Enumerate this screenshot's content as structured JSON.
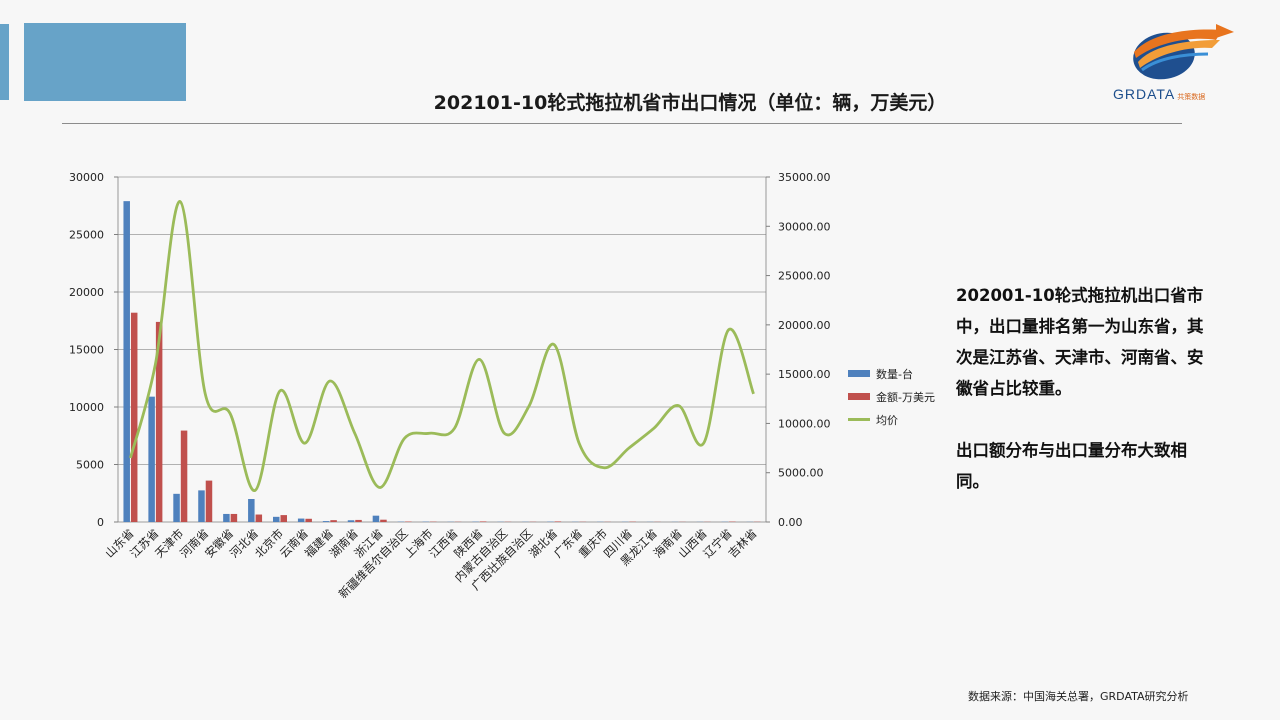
{
  "title": "202101-10轮式拖拉机省市出口情况（单位：辆，万美元）",
  "logo": {
    "name": "GRDATA",
    "tagline": "共策数据"
  },
  "summary": {
    "p1": "202001-10轮式拖拉机出口省市中，出口量排名第一为山东省，其次是江苏省、天津市、河南省、安徽省占比较重。",
    "p2": "出口额分布与出口量分布大致相同。"
  },
  "source": "数据来源：中国海关总署，GRDATA研究分析",
  "colors": {
    "series1": "#4f81bd",
    "series2": "#c0504d",
    "series3": "#9bbb59",
    "accent": "#67a3c8"
  },
  "chart_data": {
    "type": "bar",
    "categories": [
      "山东省",
      "江苏省",
      "天津市",
      "河南省",
      "安徽省",
      "河北省",
      "北京市",
      "云南省",
      "福建省",
      "湖南省",
      "浙江省",
      "新疆维吾尔自治区",
      "上海市",
      "江西省",
      "陕西省",
      "内蒙古自治区",
      "广西壮族自治区",
      "湖北省",
      "广东省",
      "重庆市",
      "四川省",
      "黑龙江省",
      "海南省",
      "山西省",
      "辽宁省",
      "吉林省"
    ],
    "series": [
      {
        "name": "数量-台",
        "type": "bar",
        "axis": "left",
        "values": [
          27900,
          10900,
          2450,
          2750,
          700,
          2000,
          450,
          300,
          80,
          150,
          550,
          30,
          30,
          20,
          30,
          20,
          20,
          30,
          20,
          20,
          20,
          15,
          15,
          15,
          20,
          15
        ]
      },
      {
        "name": "金额-万美元",
        "type": "bar",
        "axis": "left",
        "values": [
          18200,
          17400,
          7950,
          3600,
          700,
          650,
          600,
          280,
          160,
          180,
          200,
          40,
          30,
          20,
          50,
          20,
          20,
          50,
          20,
          15,
          30,
          15,
          15,
          15,
          35,
          20
        ]
      },
      {
        "name": "均价",
        "type": "line",
        "axis": "right",
        "values": [
          6500,
          16000,
          32500,
          13000,
          11000,
          3200,
          13300,
          8000,
          14300,
          9000,
          3500,
          8500,
          9000,
          9500,
          16500,
          9000,
          11800,
          18000,
          8000,
          5500,
          7500,
          9500,
          11800,
          8000,
          19500,
          13000
        ]
      }
    ],
    "yleft": {
      "range": [
        0,
        30000
      ],
      "ticks": [
        "0",
        "5000",
        "10000",
        "15000",
        "20000",
        "25000",
        "30000"
      ]
    },
    "yright": {
      "range": [
        0,
        35000
      ],
      "ticks": [
        "0.00",
        "5000.00",
        "10000.00",
        "15000.00",
        "20000.00",
        "25000.00",
        "30000.00",
        "35000.00"
      ]
    },
    "grid": true,
    "legend": "right"
  }
}
